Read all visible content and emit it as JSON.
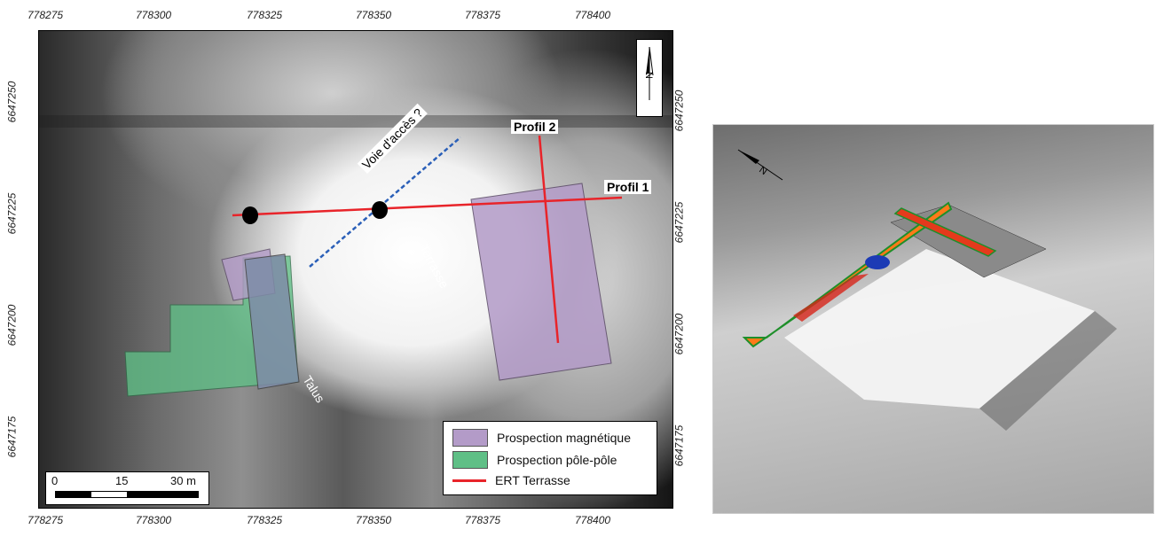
{
  "map": {
    "x_ticks_top": [
      "778275",
      "778300",
      "778325",
      "778350",
      "778375",
      "778400"
    ],
    "x_ticks_bottom": [
      "778275",
      "778300",
      "778325",
      "778350",
      "778375",
      "778400"
    ],
    "y_ticks_left": [
      "6647250",
      "6647225",
      "6647200",
      "6647175"
    ],
    "y_ticks_right": [
      "6647250",
      "6647225",
      "6647200",
      "6647175"
    ],
    "north_label": "N",
    "labels": {
      "voie": "Voie d'accès ?",
      "terrasse": "Terrasse",
      "talus": "Talus",
      "profil1": "Profil 1",
      "profil2": "Profil 2"
    },
    "legend": [
      {
        "label": "Prospection magnétique",
        "color": "#b39bc8",
        "kind": "area"
      },
      {
        "label": "Prospection pôle-pôle",
        "color": "#5fbf86",
        "kind": "area"
      },
      {
        "label": "ERT Terrasse",
        "color": "#e8242a",
        "kind": "line"
      }
    ],
    "scale": {
      "label_0": "0",
      "label_15": "15",
      "label_30": "30 m"
    }
  },
  "view3d": {
    "north_label": "N"
  }
}
